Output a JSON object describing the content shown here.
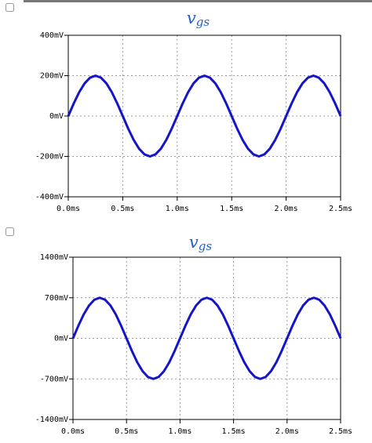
{
  "chart_data": [
    {
      "type": "line",
      "title": "v",
      "title_sub": "gs",
      "color": "#1414c8",
      "grid": true,
      "x": [
        0,
        0.05,
        0.1,
        0.15,
        0.2,
        0.25,
        0.3,
        0.35,
        0.4,
        0.45,
        0.5,
        0.55,
        0.6,
        0.65,
        0.7,
        0.75,
        0.8,
        0.85,
        0.9,
        0.95,
        1,
        1.05,
        1.1,
        1.15,
        1.2,
        1.25,
        1.3,
        1.35,
        1.4,
        1.45,
        1.5,
        1.55,
        1.6,
        1.65,
        1.7,
        1.75,
        1.8,
        1.85,
        1.9,
        1.95,
        2,
        2.05,
        2.1,
        2.15,
        2.2,
        2.25,
        2.3,
        2.35,
        2.4,
        2.45,
        2.5
      ],
      "values": [
        0,
        62,
        118,
        162,
        190,
        200,
        190,
        162,
        118,
        62,
        0,
        -62,
        -118,
        -162,
        -190,
        -200,
        -190,
        -162,
        -118,
        -62,
        0,
        62,
        118,
        162,
        190,
        200,
        190,
        162,
        118,
        62,
        0,
        -62,
        -118,
        -162,
        -190,
        -200,
        -190,
        -162,
        -118,
        -62,
        0,
        62,
        118,
        162,
        190,
        200,
        190,
        162,
        118,
        62,
        0
      ],
      "xlim": [
        0,
        2.5
      ],
      "xticks": [
        {
          "value": 0,
          "label": "0.0ms"
        },
        {
          "value": 0.5,
          "label": "0.5ms"
        },
        {
          "value": 1,
          "label": "1.0ms"
        },
        {
          "value": 1.5,
          "label": "1.5ms"
        },
        {
          "value": 2,
          "label": "2.0ms"
        },
        {
          "value": 2.5,
          "label": "2.5ms"
        }
      ],
      "ylim": [
        -400,
        400
      ],
      "yticks": [
        {
          "value": -400,
          "label": "-400mV"
        },
        {
          "value": -200,
          "label": "-200mV"
        },
        {
          "value": 0,
          "label": "0mV"
        },
        {
          "value": 200,
          "label": "200mV"
        },
        {
          "value": 400,
          "label": "400mV"
        }
      ]
    },
    {
      "type": "line",
      "title": "v",
      "title_sub": "gs",
      "color": "#1414c8",
      "grid": true,
      "x": [
        0,
        0.05,
        0.1,
        0.15,
        0.2,
        0.25,
        0.3,
        0.35,
        0.4,
        0.45,
        0.5,
        0.55,
        0.6,
        0.65,
        0.7,
        0.75,
        0.8,
        0.85,
        0.9,
        0.95,
        1,
        1.05,
        1.1,
        1.15,
        1.2,
        1.25,
        1.3,
        1.35,
        1.4,
        1.45,
        1.5,
        1.55,
        1.6,
        1.65,
        1.7,
        1.75,
        1.8,
        1.85,
        1.9,
        1.95,
        2,
        2.05,
        2.1,
        2.15,
        2.2,
        2.25,
        2.3,
        2.35,
        2.4,
        2.45,
        2.5
      ],
      "values": [
        0,
        216,
        412,
        566,
        666,
        700,
        666,
        566,
        412,
        216,
        0,
        -216,
        -412,
        -566,
        -666,
        -700,
        -666,
        -566,
        -412,
        -216,
        0,
        216,
        412,
        566,
        666,
        700,
        666,
        566,
        412,
        216,
        0,
        -216,
        -412,
        -566,
        -666,
        -700,
        -666,
        -566,
        -412,
        -216,
        0,
        216,
        412,
        566,
        666,
        700,
        666,
        566,
        412,
        216,
        0
      ],
      "xlim": [
        0,
        2.5
      ],
      "xticks": [
        {
          "value": 0,
          "label": "0.0ms"
        },
        {
          "value": 0.5,
          "label": "0.5ms"
        },
        {
          "value": 1,
          "label": "1.0ms"
        },
        {
          "value": 1.5,
          "label": "1.5ms"
        },
        {
          "value": 2,
          "label": "2.0ms"
        },
        {
          "value": 2.5,
          "label": "2.5ms"
        }
      ],
      "ylim": [
        -1400,
        1400
      ],
      "yticks": [
        {
          "value": -1400,
          "label": "-1400mV"
        },
        {
          "value": -700,
          "label": "-700mV"
        },
        {
          "value": 0,
          "label": "0mV"
        },
        {
          "value": 700,
          "label": "700mV"
        },
        {
          "value": 1400,
          "label": "1400mV"
        }
      ]
    }
  ]
}
